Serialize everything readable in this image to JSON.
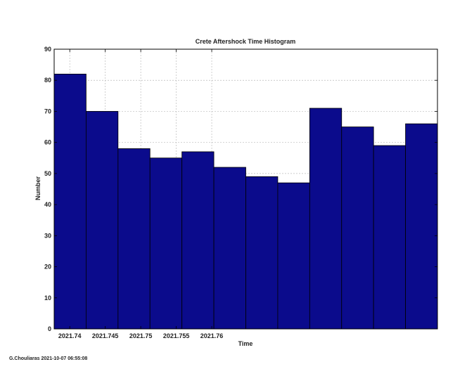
{
  "chart_data": {
    "type": "bar",
    "title": "Crete Aftershock Time Histogram",
    "xlabel": "Time",
    "ylabel": "Number",
    "bins": [
      {
        "start": 2021.7378,
        "end": 2021.7423,
        "value": 82
      },
      {
        "start": 2021.7423,
        "end": 2021.7468,
        "value": 70
      },
      {
        "start": 2021.7468,
        "end": 2021.7513,
        "value": 58
      },
      {
        "start": 2021.7513,
        "end": 2021.7558,
        "value": 55
      },
      {
        "start": 2021.7558,
        "end": 2021.7603,
        "value": 57
      },
      {
        "start": 2021.7603,
        "end": 2021.7648,
        "value": 52
      },
      {
        "start": 2021.7648,
        "end": 2021.7693,
        "value": 49
      },
      {
        "start": 2021.7693,
        "end": 2021.7738,
        "value": 47
      },
      {
        "start": 2021.7738,
        "end": 2021.7783,
        "value": 71
      },
      {
        "start": 2021.7783,
        "end": 2021.7828,
        "value": 65
      },
      {
        "start": 2021.7828,
        "end": 2021.7873,
        "value": 59
      },
      {
        "start": 2021.7873,
        "end": 2021.7918,
        "value": 66
      }
    ],
    "xlim": [
      2021.7378,
      2021.7918
    ],
    "ylim": [
      0,
      90
    ],
    "xticks": [
      2021.74,
      2021.745,
      2021.75,
      2021.755,
      2021.76
    ],
    "xtick_labels": [
      "2021.74",
      "2021.745",
      "2021.75",
      "2021.755",
      "2021.76"
    ],
    "yticks": [
      0,
      10,
      20,
      30,
      40,
      50,
      60,
      70,
      80,
      90
    ],
    "ytick_labels": [
      "0",
      "10",
      "20",
      "30",
      "40",
      "50",
      "60",
      "70",
      "80",
      "90"
    ],
    "grid": true,
    "bar_color": "#0b0b8c",
    "bar_edge_color": "#000000"
  },
  "footer": {
    "credit": "G.Chouliaras 2021-10-07 06:55:08"
  }
}
